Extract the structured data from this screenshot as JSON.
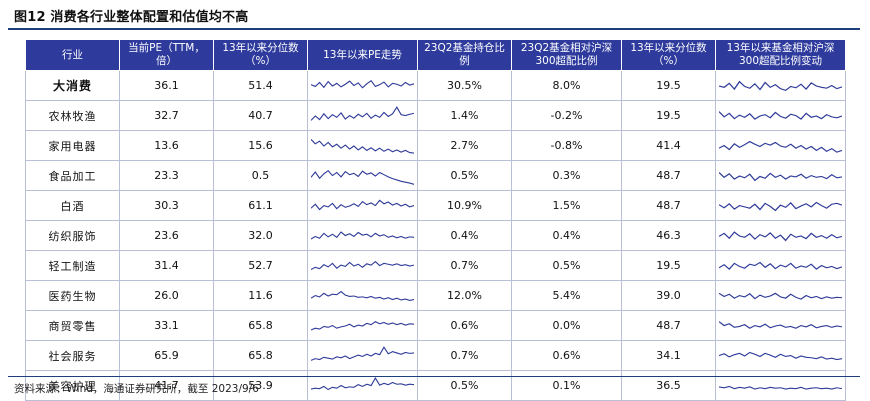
{
  "title": "图12 消费各行业整体配置和估值均不高",
  "source": "资料来源：Wind，海通证券研究所，截至 2023/9/6",
  "table": {
    "headers": [
      "行业",
      "当前PE（TTM，倍）",
      "13年以来分位数（%）",
      "13年以来PE走势",
      "23Q2基金持仓比例",
      "23Q2基金相对沪深300超配比例",
      "13年以来分位数（%）",
      "13年以来基金相对沪深300超配比例变动"
    ],
    "rows": [
      {
        "industry": "大消费",
        "pe": "36.1",
        "pe_pct": "51.4",
        "hold": "30.5%",
        "over": "8.0%",
        "over_pct": "19.5",
        "pe_trend": [
          56,
          48,
          66,
          44,
          70,
          50,
          62,
          46,
          58,
          72,
          52,
          64,
          42,
          60,
          74,
          48,
          56,
          68,
          46,
          62,
          58,
          50,
          66,
          54,
          60
        ],
        "over_trend": [
          50,
          44,
          62,
          36,
          70,
          48,
          40,
          60,
          34,
          66,
          44,
          56,
          38,
          30,
          48,
          42,
          58,
          36,
          64,
          50,
          44,
          40,
          52,
          38,
          46
        ]
      },
      {
        "industry": "农林牧渔",
        "pe": "32.7",
        "pe_pct": "40.7",
        "hold": "1.4%",
        "over": "-0.2%",
        "over_pct": "19.5",
        "pe_trend": [
          30,
          50,
          34,
          60,
          38,
          56,
          44,
          64,
          36,
          52,
          40,
          58,
          46,
          62,
          40,
          54,
          44,
          66,
          48,
          60,
          90,
          56,
          52,
          58,
          62
        ],
        "over_trend": [
          70,
          46,
          62,
          38,
          54,
          44,
          60,
          36,
          50,
          56,
          42,
          66,
          48,
          40,
          58,
          52,
          36,
          62,
          44,
          50,
          38,
          56,
          46,
          42,
          50
        ]
      },
      {
        "industry": "家用电器",
        "pe": "13.6",
        "pe_pct": "15.6",
        "hold": "2.7%",
        "over": "-0.8%",
        "over_pct": "41.4",
        "pe_trend": [
          80,
          60,
          72,
          50,
          66,
          46,
          58,
          40,
          54,
          36,
          50,
          32,
          46,
          30,
          42,
          28,
          40,
          26,
          36,
          24,
          32,
          22,
          30,
          20,
          18
        ],
        "over_trend": [
          40,
          52,
          34,
          60,
          44,
          56,
          70,
          58,
          48,
          62,
          54,
          66,
          50,
          44,
          58,
          40,
          52,
          36,
          48,
          30,
          44,
          26,
          38,
          22,
          30
        ]
      },
      {
        "industry": "食品加工",
        "pe": "23.3",
        "pe_pct": "0.5",
        "hold": "0.5%",
        "over": "0.3%",
        "over_pct": "48.7",
        "pe_trend": [
          44,
          68,
          40,
          60,
          74,
          52,
          66,
          46,
          70,
          56,
          62,
          48,
          72,
          58,
          64,
          50,
          66,
          56,
          46,
          38,
          32,
          26,
          22,
          18,
          12
        ],
        "over_trend": [
          66,
          44,
          60,
          36,
          50,
          42,
          58,
          30,
          48,
          40,
          62,
          44,
          54,
          36,
          50,
          46,
          58,
          40,
          52,
          44,
          48,
          38,
          56,
          42,
          46
        ]
      },
      {
        "industry": "白酒",
        "pe": "30.3",
        "pe_pct": "61.1",
        "hold": "10.9%",
        "over": "1.5%",
        "over_pct": "48.7",
        "pe_trend": [
          40,
          58,
          34,
          52,
          46,
          62,
          38,
          56,
          44,
          50,
          60,
          48,
          70,
          56,
          64,
          52,
          76,
          60,
          68,
          54,
          62,
          50,
          58,
          46,
          52
        ],
        "over_trend": [
          56,
          42,
          60,
          36,
          52,
          46,
          40,
          58,
          34,
          62,
          48,
          30,
          54,
          44,
          64,
          38,
          50,
          60,
          46,
          66,
          52,
          40,
          58,
          62,
          54
        ]
      },
      {
        "industry": "纺织服饰",
        "pe": "23.6",
        "pe_pct": "32.0",
        "hold": "0.4%",
        "over": "0.4%",
        "over_pct": "46.3",
        "pe_trend": [
          36,
          48,
          40,
          62,
          46,
          58,
          44,
          68,
          52,
          60,
          48,
          66,
          54,
          58,
          46,
          62,
          50,
          56,
          44,
          50,
          42,
          48,
          40,
          46,
          44
        ],
        "over_trend": [
          48,
          62,
          40,
          68,
          50,
          44,
          60,
          36,
          56,
          46,
          64,
          40,
          54,
          30,
          58,
          44,
          50,
          38,
          62,
          44,
          52,
          40,
          56,
          42,
          48
        ]
      },
      {
        "industry": "轻工制造",
        "pe": "31.4",
        "pe_pct": "52.7",
        "hold": "0.7%",
        "over": "0.5%",
        "over_pct": "19.5",
        "pe_trend": [
          34,
          44,
          38,
          56,
          46,
          62,
          40,
          54,
          48,
          66,
          50,
          58,
          44,
          60,
          54,
          70,
          52,
          62,
          58,
          54,
          60,
          52,
          56,
          50,
          54
        ],
        "over_trend": [
          42,
          56,
          36,
          62,
          48,
          40,
          58,
          52,
          66,
          44,
          60,
          38,
          54,
          46,
          62,
          40,
          50,
          44,
          58,
          36,
          52,
          42,
          48,
          38,
          46
        ]
      },
      {
        "industry": "医药生物",
        "pe": "26.0",
        "pe_pct": "11.6",
        "hold": "12.0%",
        "over": "5.4%",
        "over_pct": "39.0",
        "pe_trend": [
          40,
          52,
          46,
          62,
          50,
          58,
          56,
          70,
          54,
          48,
          50,
          44,
          46,
          42,
          48,
          40,
          44,
          36,
          42,
          34,
          40,
          32,
          36,
          30,
          34
        ],
        "over_trend": [
          62,
          48,
          58,
          40,
          52,
          46,
          60,
          38,
          54,
          44,
          50,
          62,
          46,
          40,
          58,
          44,
          36,
          52,
          42,
          48,
          38,
          46,
          40,
          44,
          42
        ]
      },
      {
        "industry": "商贸零售",
        "pe": "33.1",
        "pe_pct": "65.8",
        "hold": "0.6%",
        "over": "0.0%",
        "over_pct": "48.7",
        "pe_trend": [
          32,
          40,
          36,
          48,
          44,
          52,
          40,
          46,
          50,
          58,
          46,
          54,
          50,
          62,
          56,
          70,
          60,
          66,
          58,
          64,
          56,
          62,
          54,
          60,
          58
        ],
        "over_trend": [
          70,
          52,
          60,
          44,
          48,
          56,
          40,
          52,
          46,
          58,
          42,
          50,
          54,
          44,
          48,
          40,
          52,
          46,
          56,
          42,
          48,
          52,
          44,
          50,
          46
        ]
      },
      {
        "industry": "社会服务",
        "pe": "65.9",
        "pe_pct": "65.8",
        "hold": "0.7%",
        "over": "0.6%",
        "over_pct": "34.1",
        "pe_trend": [
          30,
          38,
          34,
          44,
          40,
          36,
          46,
          42,
          50,
          38,
          46,
          54,
          48,
          58,
          50,
          62,
          56,
          90,
          60,
          70,
          64,
          58,
          66,
          62,
          64
        ],
        "over_trend": [
          52,
          60,
          46,
          56,
          62,
          50,
          66,
          58,
          48,
          62,
          54,
          44,
          58,
          48,
          52,
          40,
          50,
          44,
          42,
          38,
          46,
          36,
          40,
          34,
          38
        ]
      },
      {
        "industry": "美容护理",
        "pe": "41.7",
        "pe_pct": "53.9",
        "hold": "0.5%",
        "over": "0.1%",
        "over_pct": "36.5",
        "pe_trend": [
          36,
          40,
          38,
          48,
          34,
          44,
          40,
          52,
          42,
          46,
          44,
          56,
          48,
          58,
          52,
          86,
          54,
          62,
          56,
          66,
          58,
          60,
          54,
          58,
          56
        ],
        "over_trend": [
          46,
          42,
          48,
          38,
          44,
          40,
          46,
          36,
          42,
          38,
          44,
          40,
          42,
          36,
          40,
          38,
          44,
          36,
          40,
          42,
          38,
          40,
          36,
          42,
          38
        ]
      }
    ]
  }
}
